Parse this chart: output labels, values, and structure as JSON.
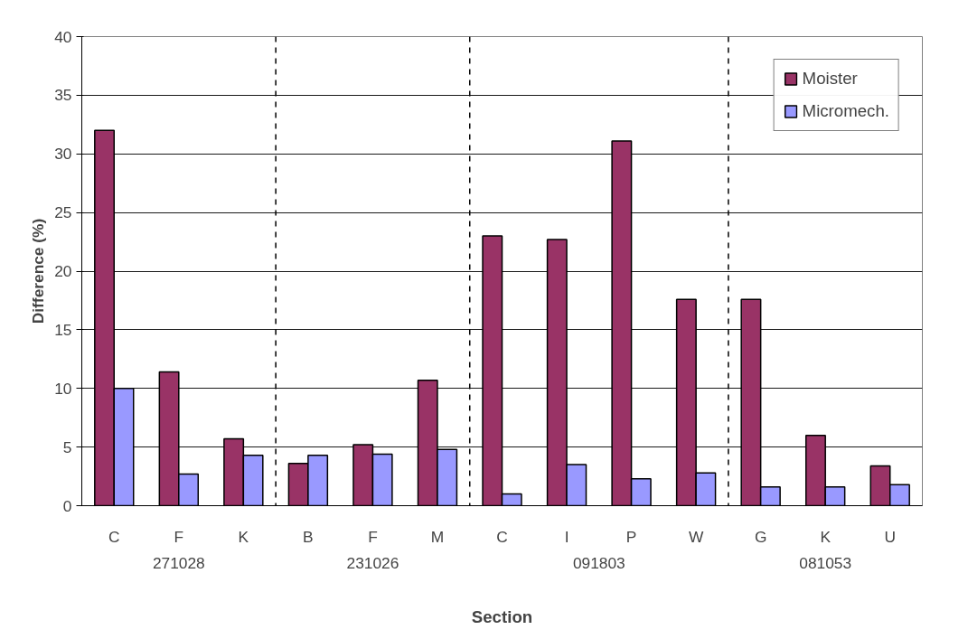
{
  "chart_data": {
    "type": "bar",
    "xlabel": "Section",
    "ylabel": "Difference (%)",
    "categories": [
      "C",
      "F",
      "K",
      "B",
      "F",
      "M",
      "C",
      "I",
      "P",
      "W",
      "G",
      "K",
      "U"
    ],
    "series": [
      {
        "name": "Moister",
        "color": "#993366",
        "values": [
          32.0,
          11.4,
          5.7,
          3.6,
          5.2,
          10.7,
          23.0,
          22.7,
          31.1,
          17.6,
          17.6,
          6.0,
          3.4
        ]
      },
      {
        "name": "Micromech.",
        "color": "#9999ff",
        "values": [
          10.0,
          2.7,
          4.3,
          4.3,
          4.4,
          4.8,
          1.0,
          3.5,
          2.3,
          2.8,
          1.6,
          1.6,
          1.8
        ]
      }
    ],
    "annotations": [
      "271028",
      "231026",
      "091803",
      "081053"
    ],
    "ylim": [
      0,
      40
    ],
    "yticks": [
      0,
      5,
      10,
      15,
      20,
      25,
      30,
      35,
      40
    ],
    "grid": "y",
    "legend": "top right"
  }
}
